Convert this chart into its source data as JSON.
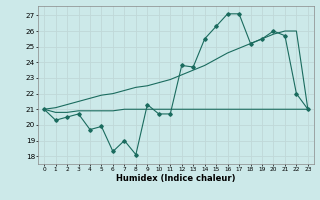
{
  "xlabel": "Humidex (Indice chaleur)",
  "bg_color": "#cce9e9",
  "grid_color": "#c0d8d8",
  "line_color": "#1a6b5e",
  "xlim": [
    -0.5,
    23.5
  ],
  "ylim": [
    17.5,
    27.6
  ],
  "yticks": [
    18,
    19,
    20,
    21,
    22,
    23,
    24,
    25,
    26,
    27
  ],
  "xticks": [
    0,
    1,
    2,
    3,
    4,
    5,
    6,
    7,
    8,
    9,
    10,
    11,
    12,
    13,
    14,
    15,
    16,
    17,
    18,
    19,
    20,
    21,
    22,
    23
  ],
  "series1": [
    21.0,
    20.3,
    20.5,
    20.7,
    19.7,
    19.9,
    18.3,
    19.0,
    18.1,
    21.3,
    20.7,
    20.7,
    23.8,
    23.7,
    25.5,
    26.3,
    27.1,
    27.1,
    25.2,
    25.5,
    26.0,
    25.7,
    22.0,
    21.0
  ],
  "series2": [
    21.0,
    20.8,
    20.8,
    20.9,
    20.9,
    20.9,
    20.9,
    21.0,
    21.0,
    21.0,
    21.0,
    21.0,
    21.0,
    21.0,
    21.0,
    21.0,
    21.0,
    21.0,
    21.0,
    21.0,
    21.0,
    21.0,
    21.0,
    21.0
  ],
  "series3": [
    21.0,
    21.1,
    21.3,
    21.5,
    21.7,
    21.9,
    22.0,
    22.2,
    22.4,
    22.5,
    22.7,
    22.9,
    23.2,
    23.5,
    23.8,
    24.2,
    24.6,
    24.9,
    25.2,
    25.5,
    25.8,
    26.0,
    26.0,
    21.0
  ]
}
